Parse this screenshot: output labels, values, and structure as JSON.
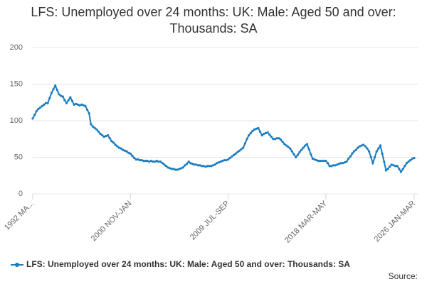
{
  "chart_data": {
    "type": "line",
    "title": "LFS: Unemployed over 24 months: UK: Male: Aged 50 and over: Thousands: SA",
    "source_label": "Source:",
    "categories": [
      "1992 MA...",
      null,
      null,
      null,
      null,
      null,
      null,
      null,
      null,
      null,
      null,
      null,
      null,
      null,
      null,
      null,
      null,
      null,
      null,
      null,
      null,
      null,
      null,
      null,
      null,
      null,
      null,
      null,
      null,
      null,
      null,
      null,
      null,
      null,
      null,
      null,
      null,
      null,
      null,
      null,
      null,
      null,
      null,
      null,
      null,
      null,
      null,
      null,
      null,
      null,
      null,
      null,
      "2000 NOV-JAN",
      null,
      null,
      null,
      null,
      null,
      null,
      null,
      null,
      null,
      null,
      null,
      null,
      null,
      null,
      null,
      null,
      null,
      null,
      null,
      null,
      null,
      null,
      null,
      null,
      null,
      null,
      null,
      null,
      null,
      null,
      null,
      null,
      null,
      null,
      null,
      null,
      null,
      null,
      null,
      null,
      null,
      null,
      null,
      null,
      null,
      null,
      null,
      null,
      null,
      null,
      null,
      "2009 JUL-SEP",
      null,
      null,
      null,
      null,
      null,
      null,
      null,
      null,
      null,
      null,
      null,
      null,
      null,
      null,
      null,
      null,
      null,
      null,
      null,
      null,
      null,
      null,
      null,
      null,
      null,
      null,
      null,
      null,
      null,
      null,
      null,
      null,
      null,
      null,
      null,
      null,
      null,
      null,
      null,
      null,
      null,
      null,
      null,
      null,
      null,
      null,
      null,
      null,
      null,
      null,
      null,
      "2018 MAR-MAY",
      null,
      null,
      null,
      null,
      null,
      null,
      null,
      null,
      null,
      null,
      null,
      null,
      null,
      null,
      null,
      null,
      null,
      null,
      null,
      null,
      null,
      null,
      null,
      null,
      null,
      null,
      null,
      null,
      null,
      null,
      null,
      null,
      null,
      null,
      null,
      null,
      null,
      null,
      null,
      null,
      null,
      null,
      null,
      null,
      null,
      null,
      "2026 JAN-MAR"
    ],
    "series": [
      {
        "name": "LFS: Unemployed over 24 months: UK: Male: Aged 50 and over: Thousands: SA",
        "color": "#1b7cbf",
        "values": [
          103,
          108,
          113,
          116,
          118,
          120,
          122,
          124,
          124,
          131,
          138,
          143,
          148,
          142,
          136,
          134,
          133,
          128,
          124,
          128,
          132,
          127,
          122,
          123,
          122,
          121,
          122,
          121,
          120,
          115,
          110,
          95,
          92,
          90,
          88,
          85,
          82,
          80,
          78,
          79,
          80,
          76,
          72,
          70,
          67,
          65,
          63,
          62,
          60,
          59,
          58,
          56,
          55,
          52,
          49,
          47,
          47,
          46,
          46,
          45,
          45,
          45,
          44,
          45,
          44,
          44,
          45,
          44,
          44,
          42,
          40,
          38,
          36,
          35,
          34,
          34,
          33,
          33,
          34,
          35,
          36,
          39,
          41,
          44,
          42,
          41,
          40,
          40,
          39,
          39,
          38,
          38,
          37,
          38,
          38,
          38,
          39,
          40,
          42,
          43,
          44,
          45,
          46,
          46,
          47,
          49,
          51,
          53,
          55,
          57,
          59,
          61,
          63,
          69,
          75,
          80,
          83,
          86,
          88,
          89,
          90,
          85,
          80,
          82,
          83,
          84,
          81,
          78,
          75,
          75,
          76,
          76,
          74,
          71,
          68,
          66,
          64,
          62,
          58,
          54,
          50,
          53,
          57,
          60,
          63,
          66,
          68,
          61,
          54,
          48,
          47,
          46,
          45,
          45,
          45,
          45,
          45,
          42,
          38,
          38,
          39,
          39,
          40,
          41,
          42,
          42,
          43,
          44,
          48,
          51,
          55,
          58,
          60,
          63,
          65,
          66,
          67,
          65,
          62,
          58,
          50,
          42,
          50,
          58,
          62,
          66,
          55,
          44,
          32,
          34,
          37,
          40,
          39,
          38,
          38,
          34,
          30,
          34,
          38,
          42,
          44,
          46,
          48,
          49
        ]
      }
    ],
    "ylim": [
      0,
      200
    ],
    "yticks": [
      0,
      50,
      100,
      150,
      200
    ],
    "grid": true
  }
}
